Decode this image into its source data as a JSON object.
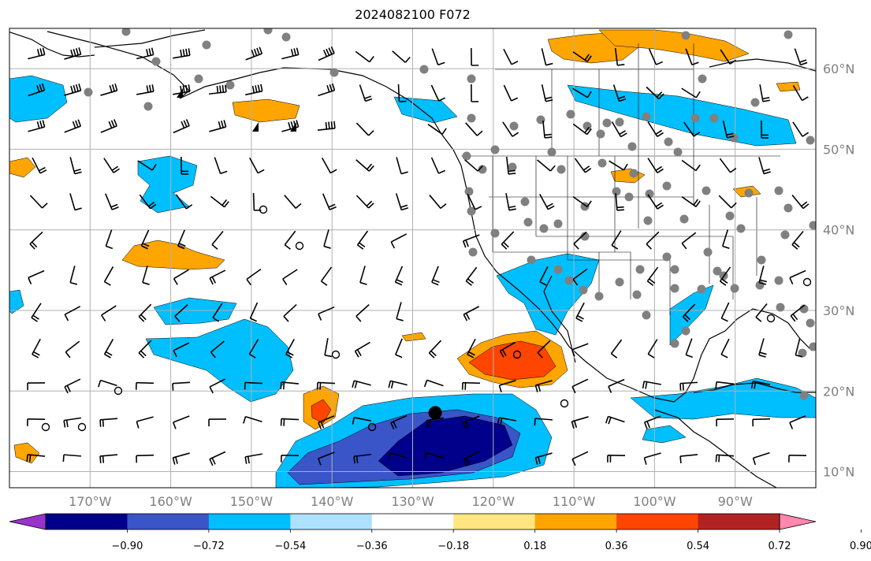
{
  "title": "2024082100 F072",
  "map": {
    "projection": "equirectangular",
    "extent": {
      "lon": [
        -180,
        -80
      ],
      "lat": [
        8,
        65
      ]
    },
    "gridlines": true,
    "lon_ticks": [
      {
        "value": -170,
        "label": "170°W"
      },
      {
        "value": -160,
        "label": "160°W"
      },
      {
        "value": -150,
        "label": "150°W"
      },
      {
        "value": -140,
        "label": "140°W"
      },
      {
        "value": -130,
        "label": "130°W"
      },
      {
        "value": -120,
        "label": "120°W"
      },
      {
        "value": -110,
        "label": "110°W"
      },
      {
        "value": -100,
        "label": "100°W"
      },
      {
        "value": -90,
        "label": "90°W"
      }
    ],
    "lat_ticks": [
      {
        "value": 60,
        "label": "60°N"
      },
      {
        "value": 50,
        "label": "50°N"
      },
      {
        "value": 40,
        "label": "40°N"
      },
      {
        "value": 30,
        "label": "30°N"
      },
      {
        "value": 20,
        "label": "20°N"
      },
      {
        "value": 10,
        "label": "10°N"
      }
    ],
    "colorbar": {
      "levels": [
        "−0.90",
        "−0.72",
        "−0.54",
        "−0.36",
        "−0.18",
        "0.18",
        "0.36",
        "0.54",
        "0.72",
        "0.90"
      ],
      "colors": [
        "#9932cc",
        "#00008b",
        "#3a55c8",
        "#00bfff",
        "#aee0ff",
        "#ffffff",
        "#ffe680",
        "#ffa500",
        "#ff4500",
        "#b22222",
        "#ff88b0"
      ]
    },
    "marker_colors": {
      "station": "#808080",
      "calm": "#000000",
      "center": "#000000"
    },
    "marked_center": {
      "lon": -127.2,
      "lat": 17.3
    }
  }
}
